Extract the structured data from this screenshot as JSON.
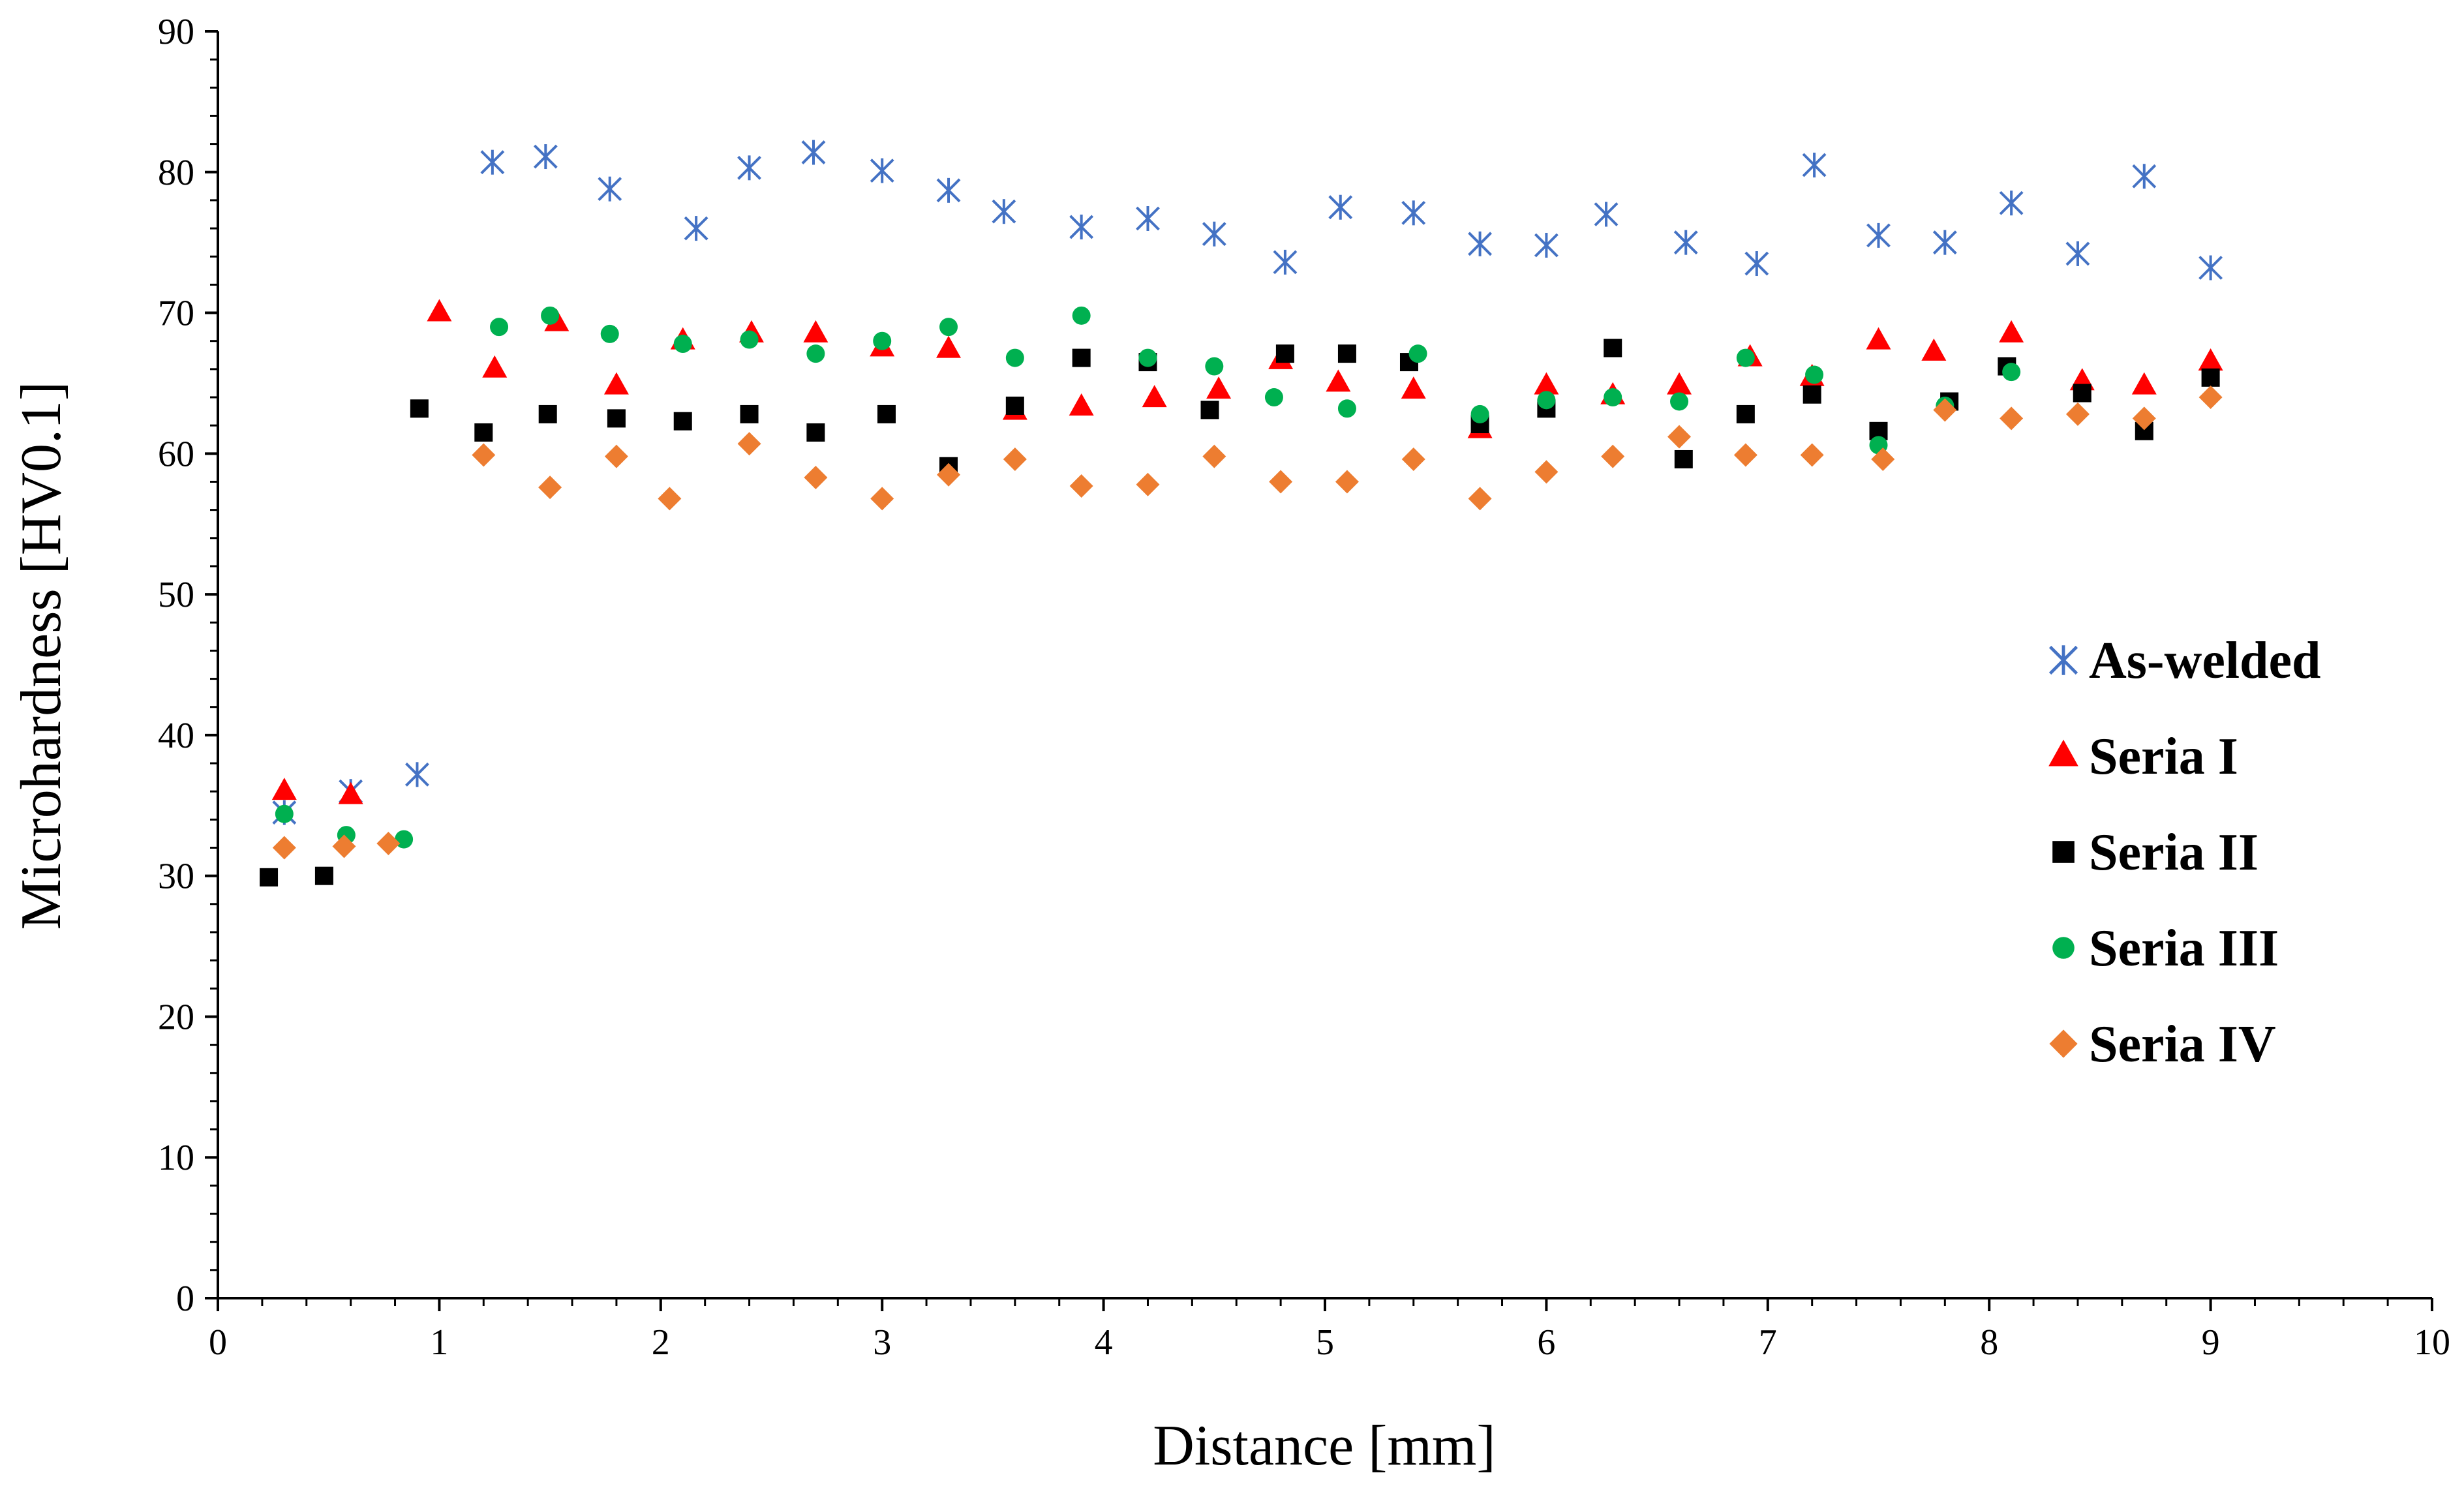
{
  "chart_data": {
    "type": "scatter",
    "title": "",
    "xlabel": "Distance [mm]",
    "ylabel": "Microhardness [HV0.1]",
    "xlim": [
      0,
      10
    ],
    "ylim": [
      0,
      90
    ],
    "xticks": [
      0,
      1,
      2,
      3,
      4,
      5,
      6,
      7,
      8,
      9,
      10
    ],
    "yticks": [
      0,
      10,
      20,
      30,
      40,
      50,
      60,
      70,
      80,
      90
    ],
    "grid": false,
    "legend_position": "right",
    "series": [
      {
        "name": "As-welded",
        "marker": "asterisk",
        "color": "#4472C4",
        "x": [
          0.3,
          0.6,
          0.9,
          1.24,
          1.48,
          1.77,
          2.16,
          2.4,
          2.69,
          3.0,
          3.3,
          3.55,
          3.9,
          4.2,
          4.5,
          4.82,
          5.07,
          5.4,
          5.7,
          6.0,
          6.27,
          6.63,
          6.95,
          7.21,
          7.5,
          7.8,
          8.1,
          8.4,
          8.7,
          9.0
        ],
        "y": [
          34.5,
          36.0,
          37.2,
          80.7,
          81.1,
          78.8,
          76.0,
          80.3,
          81.4,
          80.1,
          78.7,
          77.2,
          76.1,
          76.7,
          75.6,
          73.6,
          77.5,
          77.1,
          74.9,
          74.8,
          77.0,
          75.0,
          73.5,
          80.5,
          75.5,
          75.0,
          77.8,
          74.2,
          79.7,
          73.2
        ]
      },
      {
        "name": "Seria I",
        "marker": "triangle",
        "color": "#FF0000",
        "x": [
          0.3,
          0.6,
          1.0,
          1.25,
          1.53,
          1.8,
          2.1,
          2.41,
          2.7,
          3.0,
          3.3,
          3.6,
          3.9,
          4.23,
          4.52,
          4.8,
          5.06,
          5.4,
          5.7,
          6.0,
          6.3,
          6.6,
          6.92,
          7.2,
          7.5,
          7.75,
          8.1,
          8.42,
          8.7,
          9.0
        ],
        "y": [
          36.0,
          35.7,
          70.0,
          66.0,
          69.3,
          64.8,
          68.0,
          68.5,
          68.5,
          67.5,
          67.4,
          63.0,
          63.3,
          63.9,
          64.5,
          66.6,
          65.0,
          64.5,
          61.7,
          64.8,
          64.1,
          64.8,
          66.8,
          65.4,
          68.0,
          67.2,
          68.5,
          65.1,
          64.8,
          66.5
        ]
      },
      {
        "name": "Seria II",
        "marker": "square",
        "color": "#000000",
        "x": [
          0.23,
          0.48,
          0.91,
          1.2,
          1.49,
          1.8,
          2.1,
          2.4,
          2.7,
          3.02,
          3.3,
          3.6,
          3.9,
          4.2,
          4.48,
          4.82,
          5.1,
          5.38,
          5.7,
          6.0,
          6.3,
          6.62,
          6.9,
          7.2,
          7.5,
          7.82,
          8.08,
          8.42,
          8.7,
          9.0
        ],
        "y": [
          29.9,
          30.0,
          63.2,
          61.5,
          62.8,
          62.5,
          62.3,
          62.8,
          61.5,
          62.8,
          59.1,
          63.4,
          66.8,
          66.5,
          63.1,
          67.1,
          67.1,
          66.5,
          62.1,
          63.2,
          67.5,
          59.6,
          62.8,
          64.2,
          61.6,
          63.7,
          66.2,
          64.3,
          61.6,
          65.4
        ]
      },
      {
        "name": "Seria III",
        "marker": "circle",
        "color": "#00B050",
        "x": [
          0.3,
          0.58,
          0.84,
          1.27,
          1.5,
          1.77,
          2.1,
          2.4,
          2.7,
          3.0,
          3.3,
          3.6,
          3.9,
          4.2,
          4.5,
          4.77,
          5.1,
          5.42,
          5.7,
          6.0,
          6.3,
          6.6,
          6.9,
          7.21,
          7.5,
          7.8,
          8.1
        ],
        "y": [
          34.4,
          32.9,
          32.6,
          69.0,
          69.8,
          68.5,
          67.8,
          68.1,
          67.1,
          68.0,
          69.0,
          66.8,
          69.8,
          66.8,
          66.2,
          64.0,
          63.2,
          67.1,
          62.8,
          63.8,
          64.0,
          63.7,
          66.8,
          65.6,
          60.6,
          63.4,
          65.8
        ]
      },
      {
        "name": "Seria IV",
        "marker": "diamond",
        "color": "#ED7D31",
        "x": [
          0.3,
          0.57,
          0.77,
          1.2,
          1.5,
          1.8,
          2.04,
          2.4,
          2.7,
          3.0,
          3.3,
          3.6,
          3.9,
          4.2,
          4.5,
          4.8,
          5.1,
          5.4,
          5.7,
          6.0,
          6.3,
          6.6,
          6.9,
          7.2,
          7.52,
          7.8,
          8.1,
          8.4,
          8.7,
          9.0
        ],
        "y": [
          32.0,
          32.1,
          32.3,
          59.9,
          57.6,
          59.8,
          56.8,
          60.7,
          58.3,
          56.8,
          58.5,
          59.6,
          57.7,
          57.8,
          59.8,
          58.0,
          58.0,
          59.6,
          56.8,
          58.7,
          59.8,
          61.2,
          59.9,
          59.9,
          59.6,
          63.1,
          62.5,
          62.8,
          62.5,
          64.0
        ]
      }
    ]
  }
}
